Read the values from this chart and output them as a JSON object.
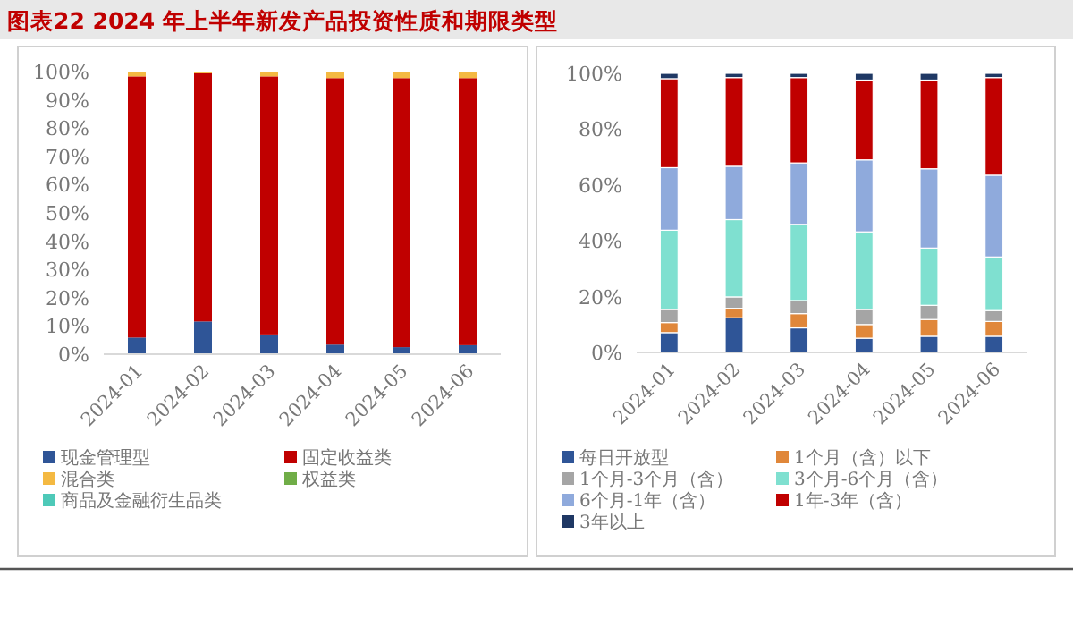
{
  "chart_data": [
    {
      "type": "bar",
      "stacked": true,
      "title": "图表22  2024 年上半年新发产品投资性质和期限类型",
      "legend": "bottom",
      "categories": [
        "2024-01",
        "2024-02",
        "2024-03",
        "2024-04",
        "2024-05",
        "2024-06"
      ],
      "ylim": [
        0,
        100
      ],
      "yticks": [
        {
          "value": 0,
          "label": "0%"
        },
        {
          "value": 10,
          "label": "10%"
        },
        {
          "value": 20,
          "label": "20%"
        },
        {
          "value": 30,
          "label": "30%"
        },
        {
          "value": 40,
          "label": "40%"
        },
        {
          "value": 50,
          "label": "50%"
        },
        {
          "value": 60,
          "label": "60%"
        },
        {
          "value": 70,
          "label": "70%"
        },
        {
          "value": 80,
          "label": "80%"
        },
        {
          "value": 90,
          "label": "90%"
        },
        {
          "value": 100,
          "label": "100%"
        }
      ],
      "series": [
        {
          "name": "现金管理型",
          "color": "#2f5597",
          "values": [
            5.9,
            11.6,
            7.0,
            3.4,
            2.5,
            3.2
          ]
        },
        {
          "name": "固定收益类",
          "color": "#c00000",
          "values": [
            92.4,
            87.8,
            91.3,
            94.3,
            95.2,
            94.5
          ]
        },
        {
          "name": "混合类",
          "color": "#f4b942",
          "values": [
            1.7,
            0.6,
            1.7,
            2.3,
            2.3,
            2.3
          ]
        },
        {
          "name": "权益类",
          "color": "#70ad47",
          "values": [
            0,
            0,
            0,
            0,
            0,
            0
          ]
        },
        {
          "name": "商品及金融衍生品类",
          "color": "#4ec9b8",
          "values": [
            0,
            0,
            0,
            0,
            0,
            0
          ]
        }
      ]
    },
    {
      "type": "bar",
      "stacked": true,
      "legend": "bottom",
      "categories": [
        "2024-01",
        "2024-02",
        "2024-03",
        "2024-04",
        "2024-05",
        "2024-06"
      ],
      "ylim": [
        0,
        100
      ],
      "yticks": [
        {
          "value": 0,
          "label": "0%"
        },
        {
          "value": 20,
          "label": "20%"
        },
        {
          "value": 40,
          "label": "40%"
        },
        {
          "value": 60,
          "label": "60%"
        },
        {
          "value": 80,
          "label": "80%"
        },
        {
          "value": 100,
          "label": "100%"
        }
      ],
      "series": [
        {
          "name": "每日开放型",
          "color": "#2f5597",
          "values": [
            7.1,
            12.4,
            8.8,
            5.1,
            5.8,
            5.8
          ]
        },
        {
          "name": "1个月（含）以下",
          "color": "#e0873a",
          "values": [
            3.6,
            3.4,
            5.1,
            4.9,
            6.0,
            5.3
          ]
        },
        {
          "name": "1个月-3个月（含）",
          "color": "#a5a5a5",
          "values": [
            4.7,
            4.1,
            4.7,
            5.4,
            5.1,
            3.9
          ]
        },
        {
          "name": "3个月-6个月（含）",
          "color": "#7fe0d0",
          "values": [
            28.4,
            27.7,
            27.3,
            27.8,
            20.5,
            19.2
          ]
        },
        {
          "name": "6个月-1年（含）",
          "color": "#8faadc",
          "values": [
            22.4,
            19.1,
            22.0,
            25.8,
            28.4,
            29.3
          ]
        },
        {
          "name": "1年-3年（含）",
          "color": "#c00000",
          "values": [
            31.9,
            31.8,
            30.6,
            28.6,
            31.8,
            35.0
          ]
        },
        {
          "name": "3年以上",
          "color": "#1f3864",
          "values": [
            1.9,
            1.5,
            1.5,
            2.4,
            2.4,
            1.5
          ]
        }
      ]
    }
  ]
}
